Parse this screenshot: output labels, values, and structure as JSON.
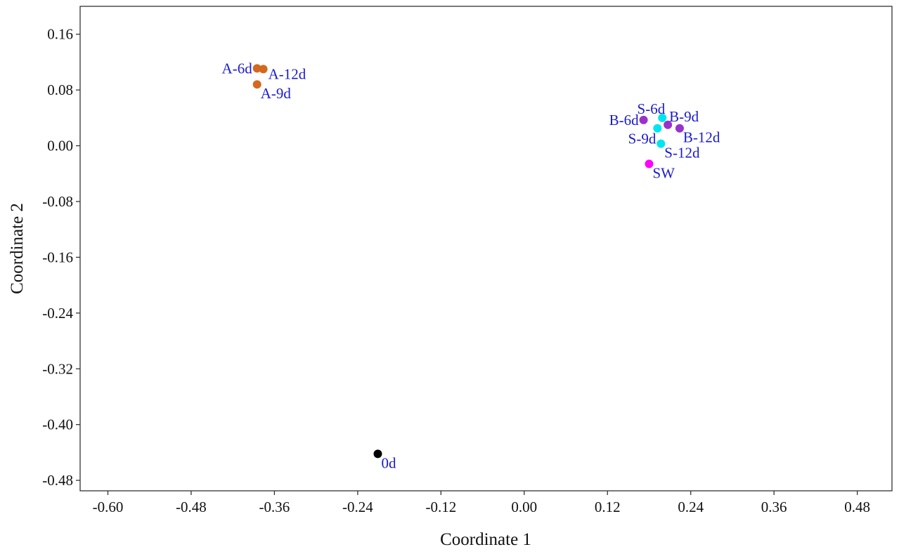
{
  "chart_data": {
    "type": "scatter",
    "xlabel": "Coordinate 1",
    "ylabel": "Coordinate 2",
    "xlim": [
      -0.64,
      0.53
    ],
    "ylim": [
      -0.495,
      0.2
    ],
    "x_ticks": [
      -0.6,
      -0.48,
      -0.36,
      -0.24,
      -0.12,
      0.0,
      0.12,
      0.24,
      0.36,
      0.48
    ],
    "x_tick_labels": [
      "-0.60",
      "-0.48",
      "-0.36",
      "-0.24",
      "-0.12",
      "0.00",
      "0.12",
      "0.24",
      "0.36",
      "0.48"
    ],
    "y_ticks": [
      0.16,
      0.08,
      0.0,
      -0.08,
      -0.16,
      -0.24,
      -0.32,
      -0.4,
      -0.48
    ],
    "y_tick_labels": [
      "0.16",
      "0.08",
      "0.00",
      "-0.08",
      "-0.16",
      "-0.24",
      "-0.32",
      "-0.40",
      "-0.48"
    ],
    "grid": false,
    "label_color": "#1a1acc",
    "points": [
      {
        "label": "A-6d",
        "x": -0.385,
        "y": 0.111,
        "color": "#d2691e",
        "label_pos": "left"
      },
      {
        "label": "A-12d",
        "x": -0.376,
        "y": 0.11,
        "color": "#d2691e",
        "label_pos": "right"
      },
      {
        "label": "A-9d",
        "x": -0.385,
        "y": 0.088,
        "color": "#d2691e",
        "label_pos": "below-right"
      },
      {
        "label": "S-6d",
        "x": 0.199,
        "y": 0.04,
        "color": "#00e5ee",
        "label_pos": "above-left"
      },
      {
        "label": "B-6d",
        "x": 0.172,
        "y": 0.037,
        "color": "#9932cc",
        "label_pos": "left"
      },
      {
        "label": "B-9d",
        "x": 0.207,
        "y": 0.03,
        "color": "#9932cc",
        "label_pos": "above-right"
      },
      {
        "label": "B-12d",
        "x": 0.224,
        "y": 0.025,
        "color": "#9932cc",
        "label_pos": "below-right"
      },
      {
        "label": "S-9d",
        "x": 0.192,
        "y": 0.025,
        "color": "#00e5ee",
        "label_pos": "below-left"
      },
      {
        "label": "S-12d",
        "x": 0.197,
        "y": 0.003,
        "color": "#00e5ee",
        "label_pos": "below-right"
      },
      {
        "label": "SW",
        "x": 0.18,
        "y": -0.026,
        "color": "#ff00ff",
        "label_pos": "below-right"
      },
      {
        "label": "0d",
        "x": -0.211,
        "y": -0.442,
        "color": "#000000",
        "label_pos": "below-right"
      }
    ]
  }
}
